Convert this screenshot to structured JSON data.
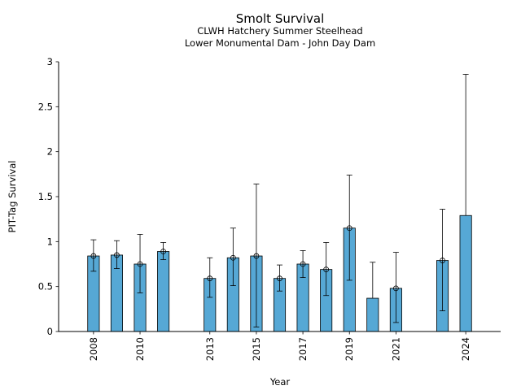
{
  "chart_data": {
    "type": "bar",
    "title": "Smolt Survival",
    "subtitle_lines": [
      "CLWH Hatchery Summer Steelhead",
      "Lower Monumental Dam - John Day Dam"
    ],
    "xlabel": "Year",
    "ylabel": "PIT-Tag Survival",
    "xlim": [
      2006.5,
      2025.5
    ],
    "ylim": [
      0,
      3
    ],
    "yticks": [
      0,
      0.5,
      1,
      1.5,
      2,
      2.5,
      3
    ],
    "ytick_labels": [
      "0",
      "0.5",
      "1",
      "1.5",
      "2",
      "2.5",
      "3"
    ],
    "xticks": [
      2008,
      2010,
      2013,
      2015,
      2017,
      2019,
      2021,
      2024
    ],
    "xtick_labels": [
      "2008",
      "2010",
      "2013",
      "2015",
      "2017",
      "2019",
      "2021",
      "2024"
    ],
    "grid": false,
    "bar_color": "#56a8d5",
    "edge_color": "#000000",
    "points": [
      {
        "x": 2008,
        "value": 0.84,
        "lower": 0.67,
        "upper": 1.02,
        "marker": true
      },
      {
        "x": 2009,
        "value": 0.85,
        "lower": 0.7,
        "upper": 1.01,
        "marker": true
      },
      {
        "x": 2010,
        "value": 0.75,
        "lower": 0.43,
        "upper": 1.08,
        "marker": true
      },
      {
        "x": 2011,
        "value": 0.89,
        "lower": 0.8,
        "upper": 0.99,
        "marker": true
      },
      {
        "x": 2013,
        "value": 0.59,
        "lower": 0.38,
        "upper": 0.82,
        "marker": true
      },
      {
        "x": 2014,
        "value": 0.82,
        "lower": 0.51,
        "upper": 1.15,
        "marker": true
      },
      {
        "x": 2015,
        "value": 0.84,
        "lower": 0.05,
        "upper": 1.64,
        "marker": true
      },
      {
        "x": 2016,
        "value": 0.59,
        "lower": 0.45,
        "upper": 0.74,
        "marker": true
      },
      {
        "x": 2017,
        "value": 0.75,
        "lower": 0.6,
        "upper": 0.9,
        "marker": true
      },
      {
        "x": 2018,
        "value": 0.69,
        "lower": 0.4,
        "upper": 0.99,
        "marker": true
      },
      {
        "x": 2019,
        "value": 1.15,
        "lower": 0.57,
        "upper": 1.74,
        "marker": true
      },
      {
        "x": 2020,
        "value": 0.37,
        "lower": null,
        "upper": 0.77,
        "marker": false
      },
      {
        "x": 2021,
        "value": 0.48,
        "lower": 0.1,
        "upper": 0.88,
        "marker": true
      },
      {
        "x": 2023,
        "value": 0.79,
        "lower": 0.23,
        "upper": 1.36,
        "marker": true
      },
      {
        "x": 2024,
        "value": 1.29,
        "lower": null,
        "upper": 2.86,
        "marker": false
      }
    ]
  }
}
